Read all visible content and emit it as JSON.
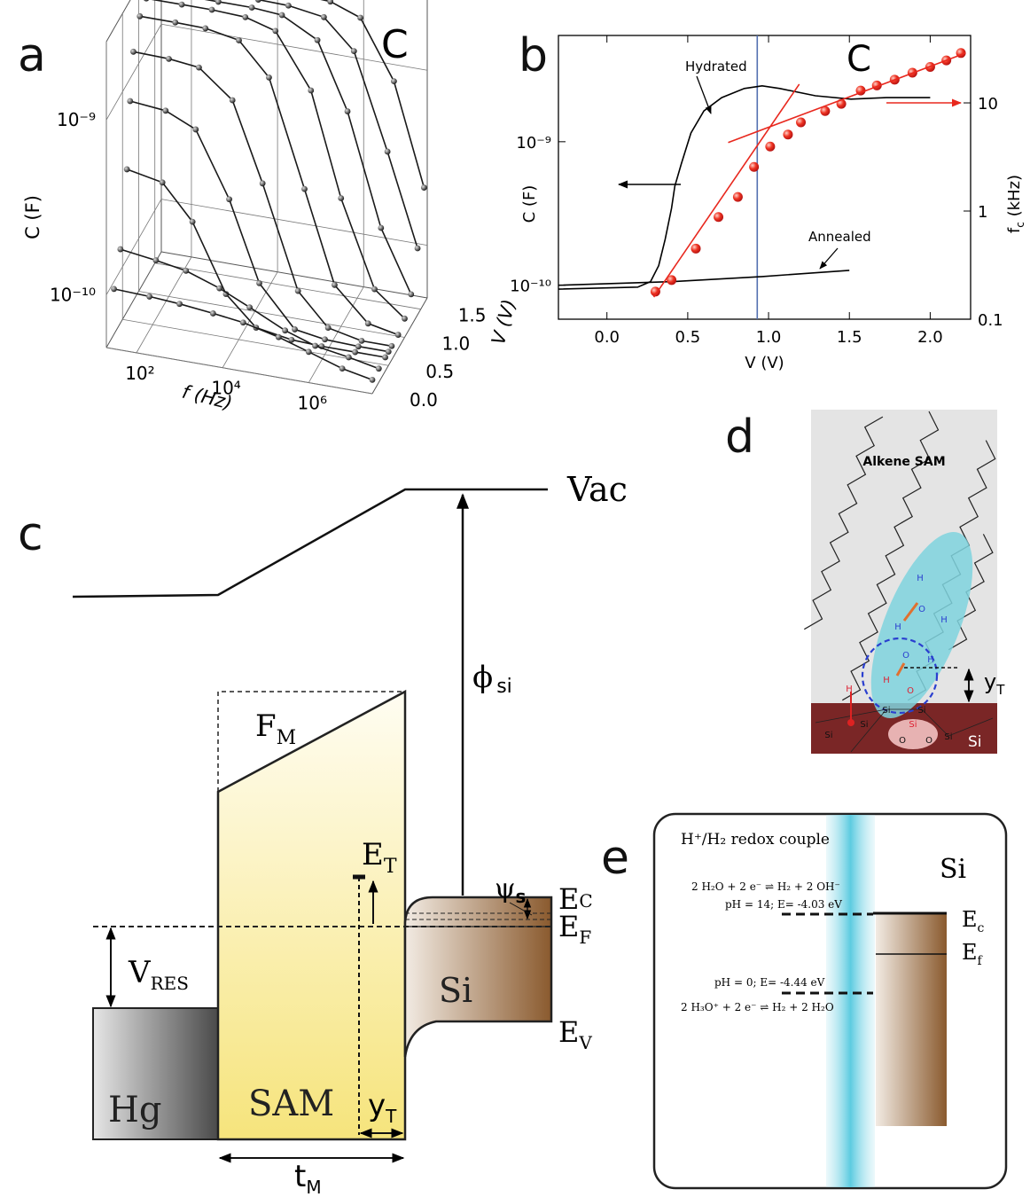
{
  "panel_labels": [
    "a",
    "b",
    "c",
    "d",
    "e"
  ],
  "chart_data": [
    {
      "type": "surface3d",
      "annotation": "C",
      "xlabel": "f (Hz)",
      "ylabel": "C (F)",
      "zlabel": "V (V)",
      "xscale": "log",
      "yscale": "log",
      "grid": true,
      "xlim": [
        20,
        30000000
      ],
      "ylim": [
        5e-11,
        2.8e-09
      ],
      "zlim": [
        0,
        1.7
      ],
      "xticks": [
        {
          "value": 100,
          "label": "10²"
        },
        {
          "value": 10000,
          "label": "10⁴"
        },
        {
          "value": 1000000,
          "label": "10⁶"
        }
      ],
      "yticks": [
        {
          "value": 1e-10,
          "label": "10⁻¹⁰"
        },
        {
          "value": 1e-09,
          "label": "10⁻⁹"
        }
      ],
      "zticks": [
        {
          "value": 0,
          "label": "0.0"
        },
        0.5,
        {
          "value": 1,
          "label": "1.0"
        },
        1.5
      ],
      "x": [
        30,
        200,
        1000,
        6000,
        30000,
        200000,
        1000000,
        6000000,
        30000000
      ],
      "series": [
        {
          "z": 0.0,
          "color": "#1a1a1a",
          "values": [
            1.1e-10,
            1.08e-10,
            1.05e-10,
            1e-10,
            9.5e-11,
            8.5e-11,
            7.5e-11,
            6.5e-11,
            6e-11
          ]
        },
        {
          "z": 0.2,
          "color": "#1a1a1a",
          "values": [
            1.6e-10,
            1.5e-10,
            1.4e-10,
            1.2e-10,
            1e-10,
            8e-11,
            7e-11,
            6.5e-11,
            6e-11
          ]
        },
        {
          "z": 0.4,
          "color": "#1a1a1a",
          "values": [
            3.95e-10,
            3.6e-10,
            2.3e-10,
            9.6e-11,
            6.6e-11,
            6.1e-11,
            6e-11,
            6e-11,
            6e-11
          ]
        },
        {
          "z": 0.5,
          "color": "#1a1a1a",
          "values": [
            9e-10,
            8.6e-10,
            7.2e-10,
            3.1e-10,
            1.1e-10,
            6.5e-11,
            6.1e-11,
            6e-11,
            6e-11
          ]
        },
        {
          "z": 0.6,
          "color": "#1a1a1a",
          "values": [
            1.6e-09,
            1.58e-09,
            1.51e-09,
            1.06e-09,
            3.8e-10,
            1e-10,
            6.6e-11,
            6e-11,
            6e-11
          ]
        },
        {
          "z": 0.8,
          "color": "#1a1a1a",
          "values": [
            2.2e-09,
            2.2e-09,
            2.18e-09,
            2.01e-09,
            1.32e-09,
            3.3e-10,
            1e-10,
            6.5e-11,
            6e-11
          ]
        },
        {
          "z": 1.0,
          "color": "#1a1a1a",
          "values": [
            2.4e-09,
            2.4e-09,
            2.4e-09,
            2.35e-09,
            2.1e-09,
            1.04e-09,
            2.7e-10,
            8.8e-11,
            6.4e-11
          ]
        },
        {
          "z": 1.2,
          "color": "#1a1a1a",
          "values": [
            2.3e-09,
            2.3e-09,
            2.3e-09,
            2.3e-09,
            2.23e-09,
            1.74e-09,
            7.3e-10,
            1.7e-10,
            7.6e-11
          ]
        },
        {
          "z": 1.4,
          "color": "#1a1a1a",
          "values": [
            2.2e-09,
            2.2e-09,
            2.2e-09,
            2.2e-09,
            2.18e-09,
            2.03e-09,
            1.39e-09,
            4e-10,
            1.2e-10
          ]
        },
        {
          "z": 1.6,
          "color": "#1a1a1a",
          "values": [
            2.2e-09,
            2.2e-09,
            2.2e-09,
            2.2e-09,
            2.2e-09,
            2.15e-09,
            1.86e-09,
            8.7e-10,
            2.3e-10
          ]
        }
      ]
    },
    {
      "type": "line",
      "annotation": "C",
      "xlabel": "V (V)",
      "ylabel": "C (F)",
      "y2label": {
        "text": "f",
        "sub": "c",
        "unit": " (kHz)"
      },
      "yscale": "log",
      "y2scale": "log",
      "xlim": [
        -0.3,
        2.25
      ],
      "ylim": [
        5.8e-11,
        5.5e-09
      ],
      "y2lim": [
        0.1,
        42
      ],
      "xticks": [
        {
          "value": 0,
          "label": "0.0"
        },
        0.5,
        {
          "value": 1,
          "label": "1.0"
        },
        1.5,
        {
          "value": 2,
          "label": "2.0"
        }
      ],
      "yticks": [
        {
          "value": 1e-10,
          "label": "10⁻¹⁰"
        },
        {
          "value": 1e-09,
          "label": "10⁻⁹"
        }
      ],
      "y2ticks": [
        0.1,
        1,
        10
      ],
      "vline": 0.93,
      "vline_color": "#5470b0",
      "series": [
        {
          "name": "Hydrated",
          "color": "#000000",
          "x": [
            -0.3,
            0.19,
            0.27,
            0.32,
            0.36,
            0.4,
            0.42,
            0.46,
            0.52,
            0.6,
            0.71,
            0.85,
            0.96,
            1.07,
            1.29,
            1.51,
            1.73,
            2.0
          ],
          "values": [
            9.4e-11,
            9.7e-11,
            1.06e-10,
            1.37e-10,
            2.09e-10,
            3.44e-10,
            4.9e-10,
            7e-10,
            1.15e-09,
            1.64e-09,
            2.03e-09,
            2.35e-09,
            2.45e-09,
            2.35e-09,
            2.09e-09,
            1.98e-09,
            2.03e-09,
            2.03e-09
          ]
        },
        {
          "name": "Annealed",
          "color": "#000000",
          "x": [
            -0.3,
            0.41,
            0.96,
            1.5
          ],
          "values": [
            1e-10,
            1.06e-10,
            1.15e-10,
            1.27e-10
          ]
        },
        {
          "axis": "y2",
          "color": "#e8281e",
          "marker": "circle",
          "x": [
            0.3,
            0.4,
            0.55,
            0.69,
            0.81,
            0.91,
            1.01,
            1.12,
            1.2,
            1.35,
            1.45,
            1.57,
            1.67,
            1.78,
            1.89,
            2.0,
            2.1,
            2.19
          ],
          "values": [
            0.18,
            0.23,
            0.45,
            0.88,
            1.35,
            2.56,
            3.95,
            5.1,
            6.6,
            8.4,
            9.8,
            13,
            14.5,
            16.4,
            19,
            21.5,
            24.7,
            28.9
          ]
        },
        {
          "axis": "y2",
          "color": "#e8281e",
          "x": [
            0.29,
            1.19
          ],
          "values": [
            0.16,
            14.9
          ]
        },
        {
          "axis": "y2",
          "color": "#e8281e",
          "x": [
            0.75,
            2.22
          ],
          "values": [
            4.3,
            28.9
          ]
        }
      ]
    }
  ],
  "diagram_c": {
    "vac": "Vac",
    "phi": {
      "text": "ϕ",
      "sub": "si"
    },
    "fm": {
      "text": "F",
      "sub": "M"
    },
    "et": {
      "text": "E",
      "sub": "T"
    },
    "psi": {
      "text": "ψ",
      "sub": "s"
    },
    "ec": {
      "text": "E",
      "sub": "C"
    },
    "ef": {
      "text": "E",
      "sub": "F"
    },
    "ev": {
      "text": "E",
      "sub": "V"
    },
    "vres": {
      "text": "V",
      "sub": "RES"
    },
    "si": "Si",
    "hg": "Hg",
    "sam": "SAM",
    "yt": {
      "text": "y",
      "sub": "T"
    },
    "tm": {
      "text": "t",
      "sub": "M"
    }
  },
  "diagram_d": {
    "title": "Alkene SAM",
    "yt": {
      "text": "y",
      "sub": "T"
    },
    "si": "Si",
    "atoms": [
      "H",
      "O",
      "H",
      "H",
      "O",
      "H",
      "H",
      "O",
      "Si",
      "Si",
      "Si",
      "Si",
      "O",
      "O",
      "Si",
      "Si",
      "H"
    ]
  },
  "diagram_e": {
    "title": "H⁺/H₂ redox couple",
    "si": "Si",
    "eq1": "2 H₂O + 2 e⁻ ⇌ H₂ + 2 OH⁻",
    "level1": "pH = 14; E= -4.03 eV",
    "level2": "pH = 0; E= -4.44 eV",
    "eq2": "2 H₃O⁺ + 2 e⁻ ⇌ H₂ + 2 H₂O",
    "ec": {
      "text": "E",
      "sub": "c"
    },
    "ef": {
      "text": "E",
      "sub": "f"
    }
  }
}
